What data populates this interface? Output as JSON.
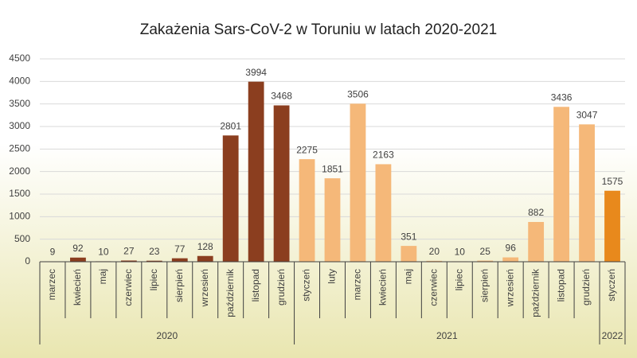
{
  "chart_data": {
    "type": "bar",
    "title": "Zakażenia Sars-CoV-2 w Toruniu w latach 2020-2021",
    "ylim": [
      0,
      4500
    ],
    "yticks": [
      0,
      500,
      1000,
      1500,
      2000,
      2500,
      3000,
      3500,
      4000,
      4500
    ],
    "grid": true,
    "series": [
      {
        "name": "2020",
        "color": "#8b3e1f",
        "categories": [
          "marzec",
          "kwiecień",
          "maj",
          "czerwiec",
          "lipiec",
          "sierpień",
          "wrzesień",
          "październik",
          "listopad",
          "grudzień"
        ],
        "values": [
          9,
          92,
          10,
          27,
          23,
          77,
          128,
          2801,
          3994,
          3468
        ]
      },
      {
        "name": "2021",
        "color": "#f5b879",
        "categories": [
          "styczeń",
          "luty",
          "marzec",
          "kwiecień",
          "maj",
          "czerwiec",
          "lipiec",
          "sierpień",
          "wrzesień",
          "październik",
          "listopad",
          "grudzień"
        ],
        "values": [
          2275,
          1851,
          3506,
          2163,
          351,
          20,
          10,
          25,
          96,
          882,
          3436,
          3047
        ]
      },
      {
        "name": "2022",
        "color": "#e8891c",
        "categories": [
          "styczeń"
        ],
        "values": [
          1575
        ]
      }
    ]
  }
}
